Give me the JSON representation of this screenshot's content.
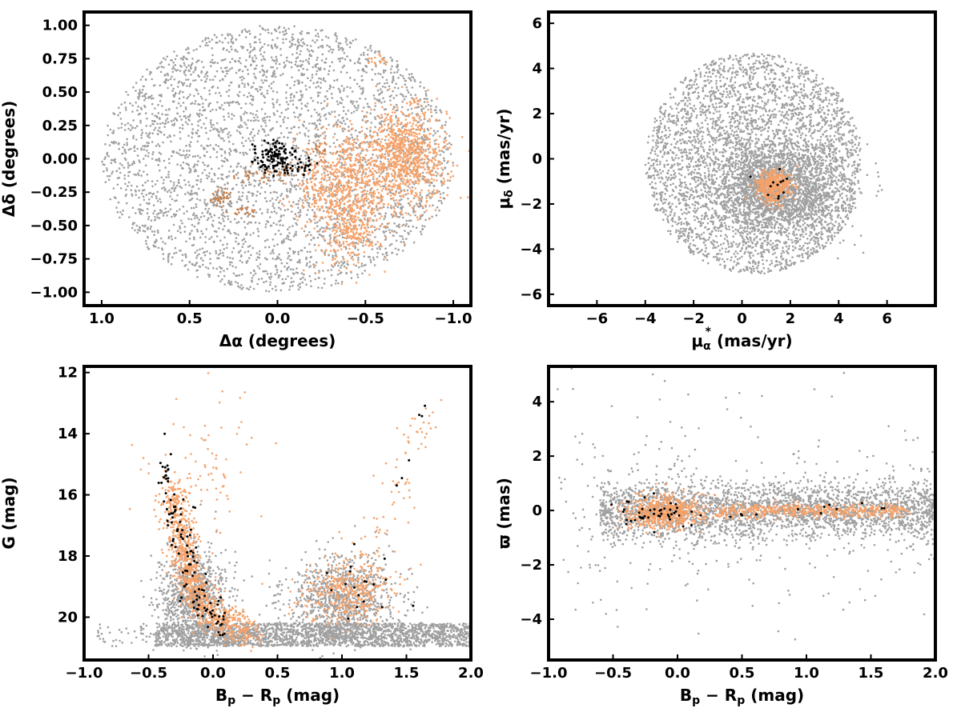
{
  "colors": {
    "field": "#a0a0a0",
    "orange": "#f5a26a",
    "brown": "#c08050",
    "black": "#000000"
  },
  "chart_data": [
    {
      "type": "scatter",
      "xlabel": {
        "main": "Δα",
        "unit": "(degrees)"
      },
      "ylabel": {
        "main": "Δδ",
        "unit": "(degrees)"
      },
      "xlim": [
        1.1,
        -1.1
      ],
      "ylim": [
        -1.1,
        1.1
      ],
      "xticks": [
        1.0,
        0.5,
        0.0,
        -0.5,
        -1.0
      ],
      "xtick_labels": [
        "1.0",
        "0.5",
        "0.0",
        "−0.5",
        "−1.0"
      ],
      "yticks": [
        -1.0,
        -0.75,
        -0.5,
        -0.25,
        0.0,
        0.25,
        0.5,
        0.75,
        1.0
      ],
      "ytick_labels": [
        "−1.00",
        "−0.75",
        "−0.50",
        "−0.25",
        "0.00",
        "0.25",
        "0.50",
        "0.75",
        "1.00"
      ],
      "series": [
        {
          "color": "#a0a0a0",
          "shape": "disk",
          "center": [
            0.0,
            0.0
          ],
          "radius": [
            1.0,
            1.0
          ],
          "count": 3500
        },
        {
          "color": "#f5a26a",
          "shape": "blob",
          "center": [
            -0.72,
            0.02
          ],
          "spread": [
            0.12,
            0.18
          ],
          "count": 900
        },
        {
          "color": "#f5a26a",
          "shape": "blob",
          "center": [
            -0.38,
            -0.22
          ],
          "spread": [
            0.14,
            0.18
          ],
          "count": 700
        },
        {
          "color": "#f5a26a",
          "shape": "blob",
          "center": [
            -0.42,
            -0.55
          ],
          "spread": [
            0.08,
            0.12
          ],
          "count": 200
        },
        {
          "color": "#f5a26a",
          "shape": "blob",
          "center": [
            -0.58,
            0.74
          ],
          "spread": [
            0.03,
            0.02
          ],
          "count": 20
        },
        {
          "color": "#f5a26a",
          "shape": "blob",
          "center": [
            -0.78,
            0.42
          ],
          "spread": [
            0.03,
            0.02
          ],
          "count": 15
        },
        {
          "color": "#c08050",
          "shape": "blob",
          "center": [
            0.33,
            -0.29
          ],
          "spread": [
            0.03,
            0.04
          ],
          "count": 40
        },
        {
          "color": "#c08050",
          "shape": "blob",
          "center": [
            0.0,
            -0.11
          ],
          "spread": [
            0.04,
            0.03
          ],
          "count": 30
        },
        {
          "color": "#c08050",
          "shape": "blob",
          "center": [
            0.15,
            -0.12
          ],
          "spread": [
            0.05,
            0.03
          ],
          "count": 25
        },
        {
          "color": "#c08050",
          "shape": "blob",
          "center": [
            -0.24,
            0.07
          ],
          "spread": [
            0.04,
            0.03
          ],
          "count": 20
        },
        {
          "color": "#c08050",
          "shape": "blob",
          "center": [
            0.2,
            -0.4
          ],
          "spread": [
            0.04,
            0.02
          ],
          "count": 20
        },
        {
          "color": "#000000",
          "shape": "blob",
          "center": [
            0.02,
            0.01
          ],
          "spread": [
            0.06,
            0.06
          ],
          "count": 110
        },
        {
          "color": "#000000",
          "shape": "blob",
          "center": [
            -0.12,
            -0.05
          ],
          "spread": [
            0.05,
            0.04
          ],
          "count": 25
        }
      ]
    },
    {
      "type": "scatter",
      "xlabel": {
        "main": "μ",
        "sub": "α",
        "sup": "*",
        "unit": " (mas/yr)"
      },
      "ylabel": {
        "main": "μ",
        "sub": "δ",
        "unit": " (mas/yr)"
      },
      "xlim": [
        -8.0,
        8.0
      ],
      "ylim": [
        -6.5,
        6.5
      ],
      "xticks": [
        -6,
        -4,
        -2,
        0,
        2,
        4,
        6
      ],
      "xtick_labels": [
        "−6",
        "−4",
        "−2",
        "0",
        "2",
        "4",
        "6"
      ],
      "yticks": [
        -6,
        -4,
        -2,
        0,
        2,
        4,
        6
      ],
      "ytick_labels": [
        "−6",
        "−4",
        "−2",
        "0",
        "2",
        "4",
        "6"
      ],
      "series": [
        {
          "color": "#a0a0a0",
          "shape": "disk",
          "center": [
            0.5,
            -0.2
          ],
          "radius": [
            4.5,
            4.9
          ],
          "clip_x_max": 4.9,
          "count": 3500
        },
        {
          "color": "#a0a0a0",
          "shape": "blob",
          "center": [
            1.5,
            -1.3
          ],
          "spread": [
            1.3,
            1.0
          ],
          "count": 2000
        },
        {
          "color": "#f5a26a",
          "shape": "blob",
          "center": [
            1.3,
            -1.2
          ],
          "spread": [
            0.35,
            0.35
          ],
          "count": 450
        },
        {
          "color": "#000000",
          "shape": "blob",
          "center": [
            1.3,
            -1.2
          ],
          "spread": [
            0.35,
            0.3
          ],
          "count": 12
        }
      ]
    },
    {
      "type": "scatter",
      "xlabel": {
        "main": "B",
        "sub": "p",
        "main2": " − R",
        "sub2": "p",
        "unit": " (mag)"
      },
      "ylabel": {
        "main": "G",
        "unit": " (mag)"
      },
      "xlim": [
        -1.0,
        2.0
      ],
      "ylim": [
        21.4,
        11.8
      ],
      "xticks": [
        -1.0,
        -0.5,
        0.0,
        0.5,
        1.0,
        1.5,
        2.0
      ],
      "xtick_labels": [
        "−1.0",
        "−0.5",
        "0.0",
        "0.5",
        "1.0",
        "1.5",
        "2.0"
      ],
      "yticks": [
        12,
        14,
        16,
        18,
        20
      ],
      "ytick_labels": [
        "12",
        "14",
        "16",
        "18",
        "20"
      ],
      "series": [
        {
          "color": "#a0a0a0",
          "shape": "band",
          "x_range": [
            -0.45,
            2.0
          ],
          "y_range": [
            20.2,
            20.95
          ],
          "count": 2200
        },
        {
          "color": "#a0a0a0",
          "shape": "band",
          "x_range": [
            -0.9,
            -0.45
          ],
          "y_range": [
            20.2,
            20.95
          ],
          "count": 40
        },
        {
          "color": "#a0a0a0",
          "shape": "blob",
          "center": [
            -0.15,
            19.3
          ],
          "spread": [
            0.13,
            0.75
          ],
          "count": 900
        },
        {
          "color": "#a0a0a0",
          "shape": "blob",
          "center": [
            1.0,
            19.4
          ],
          "spread": [
            0.22,
            0.7
          ],
          "count": 900
        },
        {
          "color": "#f5a26a",
          "shape": "sequence",
          "track": [
            [
              -0.32,
              15.8
            ],
            [
              -0.25,
              17.2
            ],
            [
              -0.2,
              18.4
            ],
            [
              -0.12,
              19.4
            ],
            [
              0.05,
              20.1
            ],
            [
              0.3,
              20.5
            ]
          ],
          "spread": [
            0.06,
            0.3
          ],
          "count": 1000
        },
        {
          "color": "#f5a26a",
          "shape": "blob",
          "center": [
            1.05,
            19.1
          ],
          "spread": [
            0.18,
            0.55
          ],
          "count": 400
        },
        {
          "color": "#f5a26a",
          "shape": "sequence",
          "track": [
            [
              1.2,
              18.2
            ],
            [
              1.4,
              16.5
            ],
            [
              1.55,
              14.5
            ],
            [
              1.7,
              13.0
            ]
          ],
          "spread": [
            0.08,
            0.4
          ],
          "count": 70
        },
        {
          "color": "#f5a26a",
          "shape": "blob",
          "center": [
            -0.1,
            15.0
          ],
          "spread": [
            0.2,
            1.2
          ],
          "count": 80
        },
        {
          "color": "#000000",
          "shape": "sequence",
          "track": [
            [
              -0.38,
              14.8
            ],
            [
              -0.3,
              16.5
            ],
            [
              -0.22,
              18.2
            ],
            [
              -0.1,
              19.5
            ],
            [
              0.1,
              20.3
            ]
          ],
          "spread": [
            0.05,
            0.35
          ],
          "count": 120
        },
        {
          "color": "#000000",
          "shape": "blob",
          "center": [
            1.1,
            19.0
          ],
          "spread": [
            0.2,
            0.6
          ],
          "count": 18
        },
        {
          "color": "#000000",
          "shape": "sequence",
          "track": [
            [
              1.4,
              16.5
            ],
            [
              1.55,
              14.0
            ],
            [
              1.68,
              12.8
            ]
          ],
          "spread": [
            0.05,
            0.3
          ],
          "count": 6
        }
      ]
    },
    {
      "type": "scatter",
      "xlabel": {
        "main": "B",
        "sub": "p",
        "main2": " − R",
        "sub2": "p",
        "unit": " (mag)"
      },
      "ylabel": {
        "main": "ϖ",
        "unit": " (mas)"
      },
      "xlim": [
        -1.0,
        2.0
      ],
      "ylim": [
        -5.5,
        5.3
      ],
      "xticks": [
        -1.0,
        -0.5,
        0.0,
        0.5,
        1.0,
        1.5,
        2.0
      ],
      "xtick_labels": [
        "−1.0",
        "−0.5",
        "0.0",
        "0.5",
        "1.0",
        "1.5",
        "2.0"
      ],
      "yticks": [
        -4,
        -2,
        0,
        2,
        4
      ],
      "ytick_labels": [
        "−4",
        "−2",
        "0",
        "2",
        "4"
      ],
      "series": [
        {
          "color": "#a0a0a0",
          "shape": "band",
          "x_range": [
            -0.6,
            2.0
          ],
          "y_range": [
            -1.2,
            1.2
          ],
          "gauss_y": true,
          "count": 2600
        },
        {
          "color": "#a0a0a0",
          "shape": "band",
          "x_range": [
            -0.95,
            2.0
          ],
          "y_range": [
            -4.8,
            4.8
          ],
          "gauss_y": true,
          "count": 350
        },
        {
          "color": "#f5a26a",
          "shape": "blob",
          "center": [
            -0.1,
            -0.05
          ],
          "spread": [
            0.14,
            0.3
          ],
          "count": 650
        },
        {
          "color": "#f5a26a",
          "shape": "band",
          "x_range": [
            0.3,
            1.8
          ],
          "y_range": [
            -0.3,
            0.3
          ],
          "gauss_y": true,
          "count": 500
        },
        {
          "color": "#000000",
          "shape": "blob",
          "center": [
            -0.2,
            -0.1
          ],
          "spread": [
            0.15,
            0.25
          ],
          "count": 45
        },
        {
          "color": "#000000",
          "shape": "band",
          "x_range": [
            0.4,
            1.7
          ],
          "y_range": [
            -0.3,
            0.3
          ],
          "gauss_y": true,
          "count": 12
        }
      ]
    }
  ]
}
